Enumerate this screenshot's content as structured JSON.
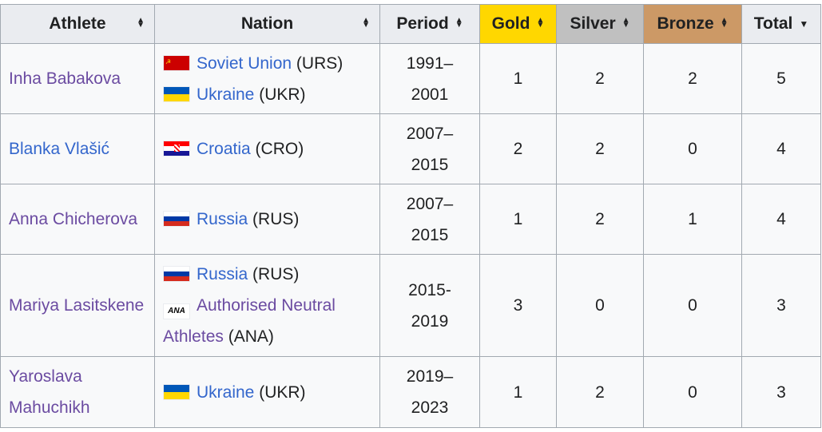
{
  "headers": [
    {
      "label": "Athlete",
      "sort": "both",
      "bg": "#eaecf0"
    },
    {
      "label": "Nation",
      "sort": "both",
      "bg": "#eaecf0"
    },
    {
      "label": "Period",
      "sort": "both",
      "bg": "#eaecf0"
    },
    {
      "label": "Gold",
      "sort": "both",
      "bg": "#ffd700"
    },
    {
      "label": "Silver",
      "sort": "both",
      "bg": "#c0c0c0"
    },
    {
      "label": "Bronze",
      "sort": "both",
      "bg": "#cc9966"
    },
    {
      "label": "Total",
      "sort": "descending",
      "bg": "#eaecf0"
    }
  ],
  "rows": [
    {
      "athlete": "Inha Babakova",
      "athlete_visited": true,
      "nations": [
        {
          "flag": "urs",
          "name": "Soviet Union",
          "code": "(URS)"
        },
        {
          "flag": "ukr",
          "name": "Ukraine",
          "code": "(UKR)"
        }
      ],
      "period_start": "1991–",
      "period_end": "2001",
      "gold": "1",
      "silver": "2",
      "bronze": "2",
      "total": "5"
    },
    {
      "athlete": "Blanka Vlašić",
      "athlete_visited": false,
      "nations": [
        {
          "flag": "cro",
          "name": "Croatia",
          "code": "(CRO)"
        }
      ],
      "period_start": "2007–",
      "period_end": "2015",
      "gold": "2",
      "silver": "2",
      "bronze": "0",
      "total": "4"
    },
    {
      "athlete": "Anna Chicherova",
      "athlete_visited": true,
      "nations": [
        {
          "flag": "rus",
          "name": "Russia",
          "code": "(RUS)"
        }
      ],
      "period_start": "2007–",
      "period_end": "2015",
      "gold": "1",
      "silver": "2",
      "bronze": "1",
      "total": "4"
    },
    {
      "athlete": "Mariya Lasitskene",
      "athlete_visited": true,
      "nations": [
        {
          "flag": "rus",
          "name": "Russia",
          "code": "(RUS)"
        },
        {
          "flag": "ana",
          "flag_text": "ANA",
          "name": "Authorised Neutral Athletes",
          "code": "(ANA)",
          "visited": true
        }
      ],
      "period_start": "2015-",
      "period_end": "2019",
      "gold": "3",
      "silver": "0",
      "bronze": "0",
      "total": "3"
    },
    {
      "athlete": "Yaroslava Mahuchikh",
      "athlete_visited": true,
      "nations": [
        {
          "flag": "ukr",
          "name": "Ukraine",
          "code": "(UKR)"
        }
      ],
      "period_start": "2019–",
      "period_end": "2023",
      "gold": "1",
      "silver": "2",
      "bronze": "0",
      "total": "3"
    }
  ]
}
